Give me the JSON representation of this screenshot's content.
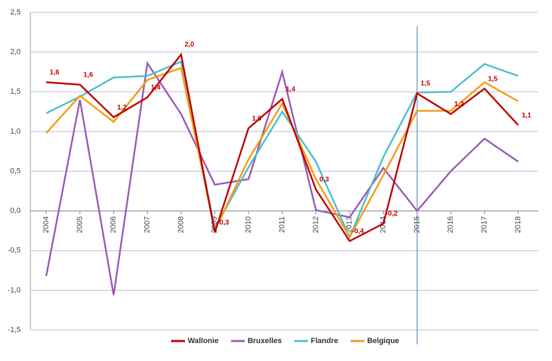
{
  "chart_data": {
    "type": "line",
    "categories": [
      "2004",
      "2005",
      "2006",
      "2007",
      "2008",
      "2009",
      "2010",
      "2011",
      "2012",
      "2013",
      "2014",
      "2015",
      "2016",
      "2017",
      "2018"
    ],
    "series": [
      {
        "name": "Wallonie",
        "color": "#c00000",
        "values": [
          1.62,
          1.59,
          1.18,
          1.43,
          1.97,
          -0.27,
          1.04,
          1.41,
          0.27,
          -0.38,
          -0.16,
          1.48,
          1.22,
          1.54,
          1.08
        ],
        "value_labels": [
          "1,6",
          "1,6",
          "1,2",
          "1,4",
          "2,0",
          "-0,3",
          "1,0",
          "1,4",
          "0,3",
          "-0,4",
          "-0,2",
          "1,5",
          "1,2",
          "1,5",
          "1,1"
        ]
      },
      {
        "name": "Bruxelles",
        "color": "#9b59b6",
        "values": [
          -0.82,
          1.4,
          -1.06,
          1.86,
          1.22,
          0.33,
          0.4,
          1.75,
          0.01,
          -0.08,
          0.54,
          0.0,
          0.5,
          0.91,
          0.62
        ]
      },
      {
        "name": "Flandre",
        "color": "#4bbfcf",
        "values": [
          1.23,
          1.44,
          1.68,
          1.7,
          1.88,
          -0.22,
          0.55,
          1.25,
          0.62,
          -0.33,
          0.68,
          1.49,
          1.5,
          1.85,
          1.7
        ]
      },
      {
        "name": "Belgique",
        "color": "#f39c12",
        "values": [
          0.98,
          1.45,
          1.12,
          1.65,
          1.8,
          -0.25,
          0.65,
          1.35,
          0.4,
          -0.33,
          0.45,
          1.26,
          1.26,
          1.62,
          1.38
        ]
      }
    ],
    "ylim": [
      -1.5,
      2.5
    ],
    "yticks": [
      {
        "value": -1.5,
        "label": "-1,5"
      },
      {
        "value": -1.0,
        "label": "-1,0"
      },
      {
        "value": -0.5,
        "label": "-0,5"
      },
      {
        "value": 0.0,
        "label": "0,0"
      },
      {
        "value": 0.5,
        "label": "0,5"
      },
      {
        "value": 1.0,
        "label": "1,0"
      },
      {
        "value": 1.5,
        "label": "1,5"
      },
      {
        "value": 2.0,
        "label": "2,0"
      },
      {
        "value": 2.5,
        "label": "2,5"
      }
    ],
    "grid": true,
    "legend": "bottom"
  }
}
